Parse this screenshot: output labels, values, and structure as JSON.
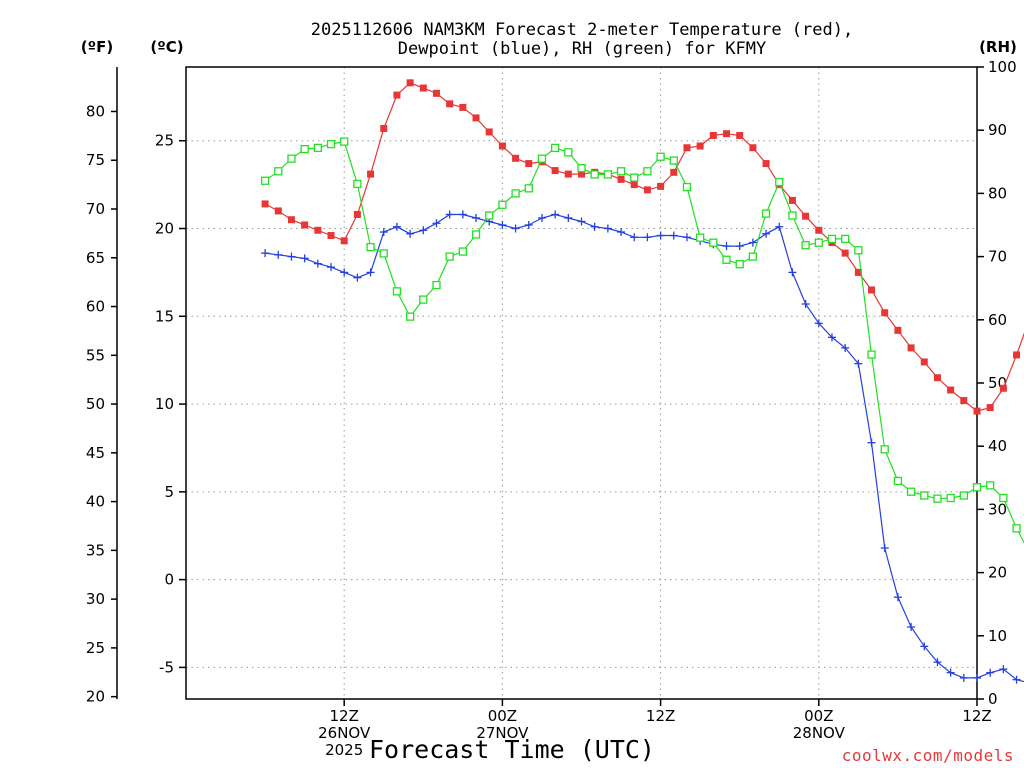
{
  "chart_data": {
    "type": "line",
    "title_line1": "2025112606 NAM3KM Forecast 2-meter Temperature (red),",
    "title_line2": "Dewpoint (blue), RH (green) for KFMY",
    "units": {
      "fahrenheit": "(ºF)",
      "celsius": "(ºC)",
      "rh": "(RH)"
    },
    "xlabel": "Forecast Time (UTC)",
    "credit": "coolwx.com/models",
    "x_range_hours": [
      -6,
      54
    ],
    "y_celsius_range": [
      -6.8,
      29.2
    ],
    "y_rh_range": [
      0,
      100
    ],
    "celsius_ticks": [
      "-5",
      "0",
      "5",
      "10",
      "15",
      "20",
      "25"
    ],
    "fahrenheit_ticks": [
      "20",
      "25",
      "30",
      "35",
      "40",
      "45",
      "50",
      "55",
      "60",
      "65",
      "70",
      "75",
      "80"
    ],
    "rh_ticks": [
      "0",
      "10",
      "20",
      "30",
      "40",
      "50",
      "60",
      "70",
      "80",
      "90",
      "100"
    ],
    "x_ticks": [
      {
        "hour": 6,
        "line1": "12Z",
        "line2": "26NOV",
        "line3": "2025"
      },
      {
        "hour": 18,
        "line1": "00Z",
        "line2": "27NOV",
        "line3": ""
      },
      {
        "hour": 30,
        "line1": "12Z",
        "line2": "",
        "line3": ""
      },
      {
        "hour": 42,
        "line1": "00Z",
        "line2": "28NOV",
        "line3": ""
      },
      {
        "hour": 54,
        "line1": "12Z",
        "line2": "",
        "line3": ""
      }
    ],
    "series": [
      {
        "name": "2-meter Temperature",
        "units": "degC",
        "color": "#e83535",
        "marker": "filled-square",
        "start_hour": 0,
        "values": [
          21.4,
          21.0,
          20.5,
          20.2,
          19.9,
          19.6,
          19.3,
          20.8,
          23.1,
          25.7,
          27.6,
          28.3,
          28.0,
          27.7,
          27.1,
          26.9,
          26.3,
          25.5,
          24.7,
          24.0,
          23.7,
          23.8,
          23.3,
          23.1,
          23.1,
          23.2,
          23.1,
          22.8,
          22.5,
          22.2,
          22.4,
          23.2,
          24.6,
          24.7,
          25.3,
          25.4,
          25.3,
          24.6,
          23.7,
          22.5,
          21.6,
          20.7,
          19.9,
          19.2,
          18.6,
          17.5,
          16.5,
          15.2,
          14.2,
          13.2,
          12.4,
          11.5,
          10.8,
          10.2,
          9.6,
          9.8,
          10.9,
          12.8,
          14.9,
          16.7,
          18.2
        ]
      },
      {
        "name": "Dewpoint",
        "units": "degC",
        "color": "#2340e0",
        "marker": "plus",
        "start_hour": 0,
        "values": [
          18.6,
          18.5,
          18.4,
          18.3,
          18.0,
          17.8,
          17.5,
          17.2,
          17.5,
          19.8,
          20.1,
          19.7,
          19.9,
          20.3,
          20.8,
          20.8,
          20.6,
          20.4,
          20.2,
          20.0,
          20.2,
          20.6,
          20.8,
          20.6,
          20.4,
          20.1,
          20.0,
          19.8,
          19.5,
          19.5,
          19.6,
          19.6,
          19.5,
          19.3,
          19.1,
          19.0,
          19.0,
          19.2,
          19.7,
          20.1,
          17.5,
          15.7,
          14.6,
          13.8,
          13.2,
          12.3,
          7.8,
          1.8,
          -1.0,
          -2.7,
          -3.8,
          -4.7,
          -5.3,
          -5.6,
          -5.6,
          -5.3,
          -5.1,
          -5.7,
          -5.9,
          -5.1,
          -4.6
        ]
      },
      {
        "name": "RH",
        "units": "percent",
        "color": "#22e022",
        "marker": "open-square",
        "start_hour": 0,
        "values": [
          82,
          83.5,
          85.5,
          87,
          87.2,
          87.8,
          88.2,
          81.5,
          71.5,
          70.5,
          64.5,
          60.5,
          63.2,
          65.5,
          70,
          70.8,
          73.5,
          76.5,
          78.2,
          80,
          80.8,
          85.5,
          87.2,
          86.5,
          84,
          83,
          83,
          83.5,
          82.5,
          83.5,
          85.8,
          85.2,
          81,
          73,
          72.2,
          69.5,
          68.8,
          70,
          76.8,
          81.8,
          76.5,
          71.8,
          72.2,
          72.8,
          72.8,
          71,
          54.5,
          39.5,
          34.5,
          32.8,
          32.2,
          31.7,
          31.8,
          32.2,
          33.5,
          33.8,
          31.8,
          27,
          23,
          21.8,
          21
        ]
      }
    ]
  }
}
